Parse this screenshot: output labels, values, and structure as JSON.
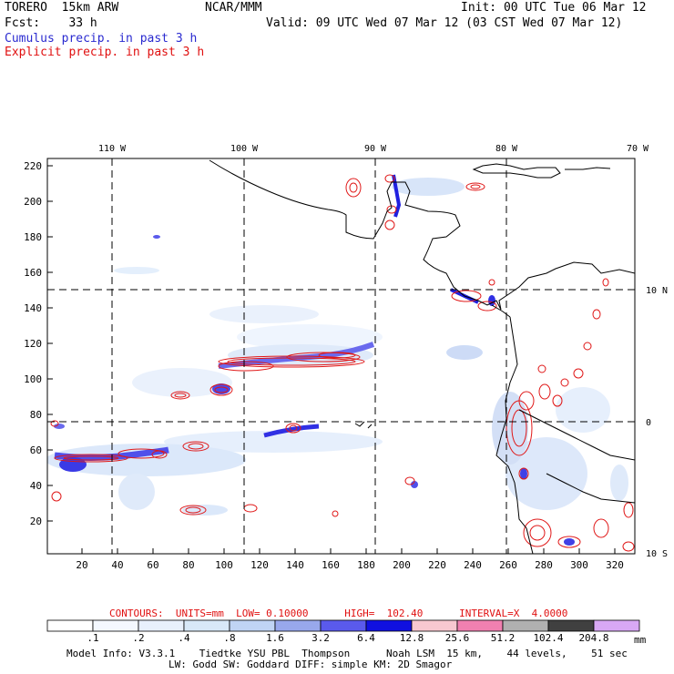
{
  "header": {
    "model_name": "TORERO  15km ARW",
    "center": "NCAR/MMM",
    "init": "Init: 00 UTC Tue 06 Mar 12",
    "forecast": "Fcst:    33 h",
    "valid": "Valid: 09 UTC Wed 07 Mar 12 (03 CST Wed 07 Mar 12)",
    "field_cumulus": "Cumulus precip. in past 3 h",
    "field_explicit": "Explicit precip. in past 3 h"
  },
  "axes": {
    "lon_labels": [
      "110 W",
      "100 W",
      "90 W",
      "80 W",
      "70 W"
    ],
    "lat_labels": [
      "10 N",
      "0",
      "10 S"
    ],
    "x_ticks": [
      "20",
      "40",
      "60",
      "80",
      "100",
      "120",
      "140",
      "160",
      "180",
      "200",
      "220",
      "240",
      "260",
      "280",
      "300",
      "320"
    ],
    "y_ticks": [
      "20",
      "40",
      "60",
      "80",
      "100",
      "120",
      "140",
      "160",
      "180",
      "200",
      "220"
    ]
  },
  "contours": {
    "label": "CONTOURS:  UNITS=mm  LOW= 0.10000      HIGH=  102.40      INTERVAL=X  4.0000"
  },
  "legend": {
    "levels": [
      ".1",
      ".2",
      ".4",
      ".8",
      "1.6",
      "3.2",
      "6.4",
      "12.8",
      "25.6",
      "51.2",
      "102.4",
      "204.8"
    ],
    "colors": [
      "#ffffff",
      "#f4f8ff",
      "#e8f0fc",
      "#d8e8f8",
      "#c0d4f4",
      "#98a8ec",
      "#5a5aec",
      "#1010e0",
      "#f8c8d0",
      "#f080b0",
      "#b0b0b0",
      "#404040",
      "#d8a8f4"
    ],
    "unit": "mm"
  },
  "footer": {
    "line1": "Model Info: V3.3.1    Tiedtke YSU PBL  Thompson      Noah LSM  15 km,    44 levels,    51 sec",
    "line2": "LW: Godd SW: Goddard DIFF: simple KM: 2D Smagor"
  }
}
